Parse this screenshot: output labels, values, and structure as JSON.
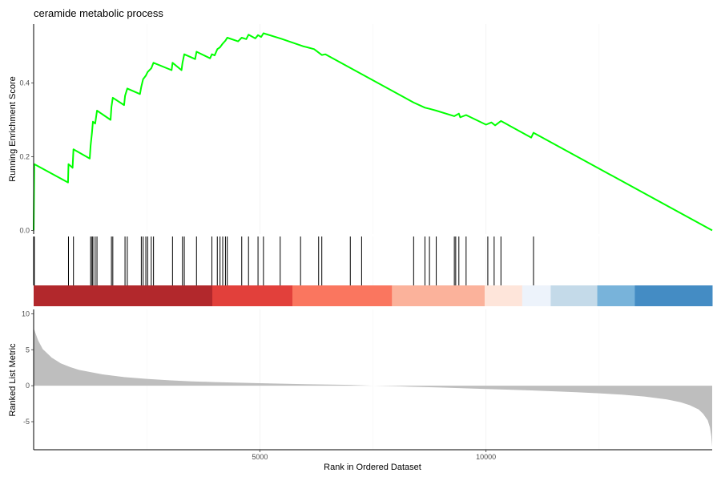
{
  "chart_data": {
    "type": "line",
    "title": "ceramide metabolic process",
    "x_axis": {
      "label": "Rank in Ordered Dataset",
      "range": [
        0,
        15000
      ],
      "ticks": [
        5000,
        10000
      ],
      "tick_labels": [
        "5000",
        "10000"
      ]
    },
    "grid": {
      "vertical_major": true,
      "horizontal": false
    },
    "panels": [
      {
        "id": "running-es",
        "ylabel": "Running Enrichment Score",
        "ylim": [
          -0.01,
          0.56
        ],
        "yticks": [
          0.0,
          0.2,
          0.4
        ],
        "ytick_labels": [
          "0.0",
          "0.2",
          "0.4"
        ],
        "series": [
          {
            "color": "#00ff00",
            "points": [
              [
                0,
                0.0
              ],
              [
                15,
                0.18
              ],
              [
                760,
                0.13
              ],
              [
                770,
                0.18
              ],
              [
                860,
                0.17
              ],
              [
                880,
                0.22
              ],
              [
                1240,
                0.195
              ],
              [
                1260,
                0.23
              ],
              [
                1290,
                0.265
              ],
              [
                1310,
                0.295
              ],
              [
                1360,
                0.29
              ],
              [
                1400,
                0.325
              ],
              [
                1700,
                0.3
              ],
              [
                1720,
                0.335
              ],
              [
                1750,
                0.36
              ],
              [
                2000,
                0.34
              ],
              [
                2020,
                0.365
              ],
              [
                2070,
                0.385
              ],
              [
                2350,
                0.37
              ],
              [
                2380,
                0.39
              ],
              [
                2420,
                0.41
              ],
              [
                2480,
                0.42
              ],
              [
                2520,
                0.43
              ],
              [
                2600,
                0.44
              ],
              [
                2650,
                0.455
              ],
              [
                3050,
                0.435
              ],
              [
                3070,
                0.455
              ],
              [
                3270,
                0.435
              ],
              [
                3290,
                0.455
              ],
              [
                3330,
                0.478
              ],
              [
                3570,
                0.465
              ],
              [
                3600,
                0.485
              ],
              [
                3900,
                0.467
              ],
              [
                3940,
                0.478
              ],
              [
                4000,
                0.475
              ],
              [
                4060,
                0.492
              ],
              [
                4120,
                0.497
              ],
              [
                4180,
                0.507
              ],
              [
                4240,
                0.515
              ],
              [
                4280,
                0.523
              ],
              [
                4520,
                0.513
              ],
              [
                4600,
                0.523
              ],
              [
                4700,
                0.519
              ],
              [
                4750,
                0.531
              ],
              [
                4900,
                0.521
              ],
              [
                4960,
                0.53
              ],
              [
                5030,
                0.525
              ],
              [
                5080,
                0.535
              ],
              [
                5480,
                0.52
              ],
              [
                5950,
                0.5
              ],
              [
                6050,
                0.497
              ],
              [
                6200,
                0.492
              ],
              [
                6370,
                0.476
              ],
              [
                6450,
                0.478
              ],
              [
                8400,
                0.347
              ],
              [
                8650,
                0.333
              ],
              [
                8750,
                0.33
              ],
              [
                8900,
                0.325
              ],
              [
                9300,
                0.31
              ],
              [
                9400,
                0.317
              ],
              [
                9430,
                0.307
              ],
              [
                9560,
                0.313
              ],
              [
                10000,
                0.287
              ],
              [
                10120,
                0.293
              ],
              [
                10200,
                0.285
              ],
              [
                10330,
                0.297
              ],
              [
                11000,
                0.252
              ],
              [
                11050,
                0.265
              ],
              [
                15000,
                0.0
              ]
            ]
          }
        ]
      },
      {
        "id": "hit-positions",
        "hits": [
          15,
          770,
          880,
          1260,
          1290,
          1310,
          1360,
          1400,
          1720,
          1750,
          2020,
          2070,
          2380,
          2420,
          2480,
          2520,
          2600,
          2650,
          3070,
          3290,
          3330,
          3600,
          3940,
          4060,
          4120,
          4180,
          4240,
          4280,
          4600,
          4750,
          4960,
          5080,
          5450,
          5900,
          6300,
          6370,
          7000,
          7250,
          8400,
          8650,
          8750,
          8900,
          9300,
          9330,
          9400,
          9560,
          10040,
          10180,
          10330,
          11050
        ],
        "color_bar": {
          "segments": [
            {
              "from": 0,
              "to": 3950,
              "color": "#b2282c"
            },
            {
              "from": 3950,
              "to": 5720,
              "color": "#e2403b"
            },
            {
              "from": 5720,
              "to": 7920,
              "color": "#fa765f"
            },
            {
              "from": 7920,
              "to": 9970,
              "color": "#fbb29b"
            },
            {
              "from": 9970,
              "to": 10800,
              "color": "#fee5da"
            },
            {
              "from": 10800,
              "to": 11430,
              "color": "#edf3fb"
            },
            {
              "from": 11430,
              "to": 12460,
              "color": "#c4dae9"
            },
            {
              "from": 12460,
              "to": 13290,
              "color": "#78b3da"
            },
            {
              "from": 13290,
              "to": 15000,
              "color": "#448cc4"
            }
          ]
        }
      },
      {
        "id": "ranked-metric",
        "type": "area",
        "ylabel": "Ranked List Metric",
        "ylim": [
          -8.9,
          10.6
        ],
        "yticks": [
          10,
          5,
          0,
          -5
        ],
        "ytick_labels": [
          "10",
          "5",
          "0",
          "-5"
        ],
        "fill_color": "#bebebe",
        "points": [
          [
            0,
            8.0
          ],
          [
            40,
            7.3
          ],
          [
            100,
            6.3
          ],
          [
            200,
            5.1
          ],
          [
            400,
            3.9
          ],
          [
            600,
            3.1
          ],
          [
            800,
            2.6
          ],
          [
            1000,
            2.2
          ],
          [
            1500,
            1.6
          ],
          [
            2000,
            1.2
          ],
          [
            2500,
            0.95
          ],
          [
            3000,
            0.75
          ],
          [
            3500,
            0.6
          ],
          [
            4000,
            0.5
          ],
          [
            5000,
            0.35
          ],
          [
            6000,
            0.22
          ],
          [
            7000,
            0.12
          ],
          [
            7500,
            0.0
          ],
          [
            8000,
            -0.08
          ],
          [
            9000,
            -0.25
          ],
          [
            10000,
            -0.45
          ],
          [
            11000,
            -0.65
          ],
          [
            12000,
            -0.9
          ],
          [
            12500,
            -1.05
          ],
          [
            13000,
            -1.25
          ],
          [
            13500,
            -1.5
          ],
          [
            14000,
            -1.9
          ],
          [
            14300,
            -2.3
          ],
          [
            14500,
            -2.7
          ],
          [
            14700,
            -3.3
          ],
          [
            14800,
            -3.9
          ],
          [
            14900,
            -4.8
          ],
          [
            14950,
            -5.8
          ],
          [
            14980,
            -7.0
          ],
          [
            15000,
            -8.5
          ]
        ]
      }
    ]
  }
}
